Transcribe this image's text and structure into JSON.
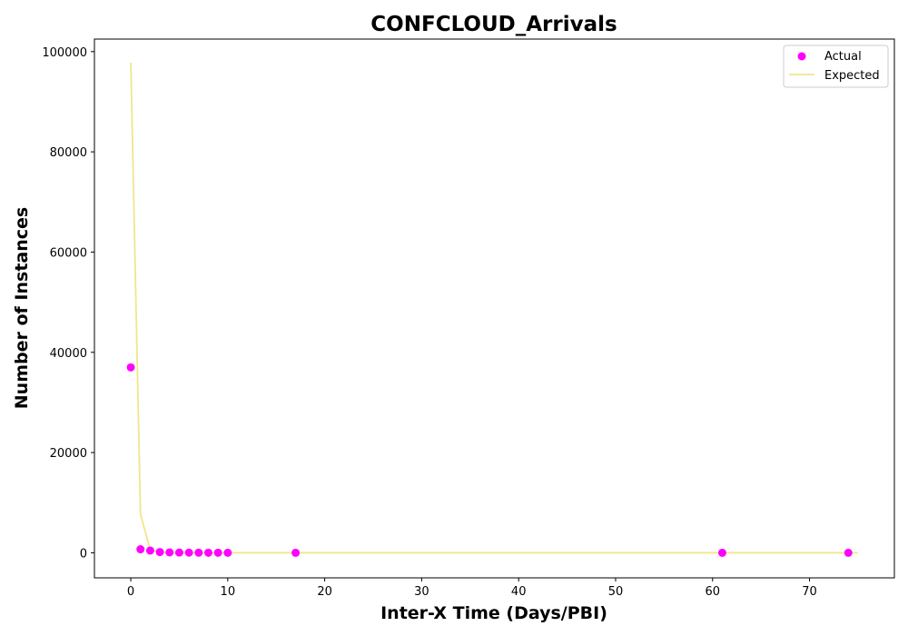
{
  "chart_data": {
    "type": "scatter",
    "title": "CONFCLOUD_Arrivals",
    "xlabel": "Inter-X Time (Days/PBI)",
    "ylabel": "Number of Instances",
    "xlim": [
      -3.75,
      78.75
    ],
    "ylim": [
      -5000,
      102500
    ],
    "xticks": [
      0,
      10,
      20,
      30,
      40,
      50,
      60,
      70
    ],
    "yticks": [
      0,
      20000,
      40000,
      60000,
      80000,
      100000
    ],
    "grid": false,
    "legend": {
      "position": "top-right",
      "entries": [
        "Actual",
        "Expected"
      ]
    },
    "series": [
      {
        "name": "Actual",
        "kind": "scatter",
        "color": "#ff00ff",
        "points": [
          [
            0,
            37000
          ],
          [
            1,
            700
          ],
          [
            2,
            450
          ],
          [
            3,
            150
          ],
          [
            4,
            80
          ],
          [
            5,
            50
          ],
          [
            6,
            30
          ],
          [
            7,
            20
          ],
          [
            8,
            15
          ],
          [
            9,
            10
          ],
          [
            10,
            8
          ],
          [
            17,
            5
          ],
          [
            61,
            3
          ],
          [
            74,
            2
          ]
        ]
      },
      {
        "name": "Expected",
        "kind": "line",
        "color": "#f0e68c",
        "points": [
          [
            0,
            97800
          ],
          [
            1,
            7700
          ],
          [
            2,
            600
          ],
          [
            3,
            50
          ],
          [
            4,
            5
          ],
          [
            5,
            0
          ],
          [
            10,
            0
          ],
          [
            20,
            0
          ],
          [
            30,
            0
          ],
          [
            40,
            0
          ],
          [
            50,
            0
          ],
          [
            60,
            0
          ],
          [
            70,
            0
          ],
          [
            75,
            0
          ]
        ]
      }
    ]
  }
}
